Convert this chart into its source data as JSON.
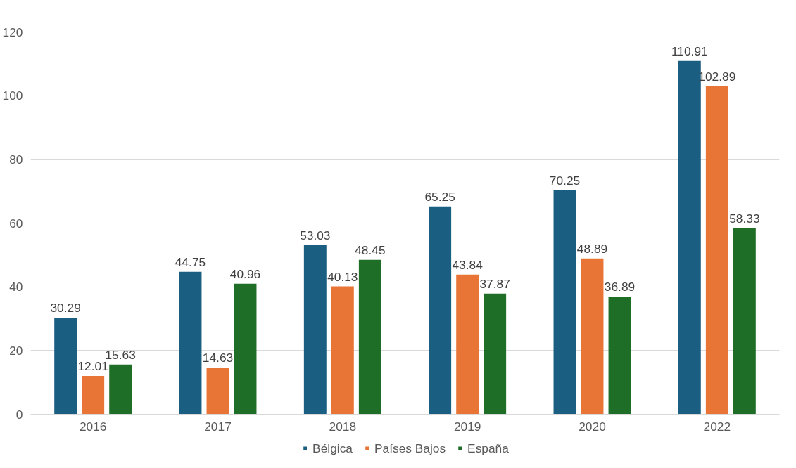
{
  "chart_data": {
    "type": "bar",
    "categories": [
      "2016",
      "2017",
      "2018",
      "2019",
      "2020",
      "2022"
    ],
    "series": [
      {
        "name": "Bélgica",
        "color": "#1a5f82",
        "values": [
          30.29,
          44.75,
          53.03,
          65.25,
          70.25,
          110.91
        ]
      },
      {
        "name": "Países Bajos",
        "color": "#e87536",
        "values": [
          12.01,
          14.63,
          40.13,
          43.84,
          48.89,
          102.89
        ]
      },
      {
        "name": "España",
        "color": "#1e6e28",
        "values": [
          15.63,
          40.96,
          48.45,
          37.87,
          36.89,
          58.33
        ]
      }
    ],
    "ylim": [
      0,
      120
    ],
    "yticks": [
      0,
      20,
      40,
      60,
      80,
      100,
      120
    ],
    "grid": "y",
    "legend": "bottom",
    "data_labels": true
  }
}
